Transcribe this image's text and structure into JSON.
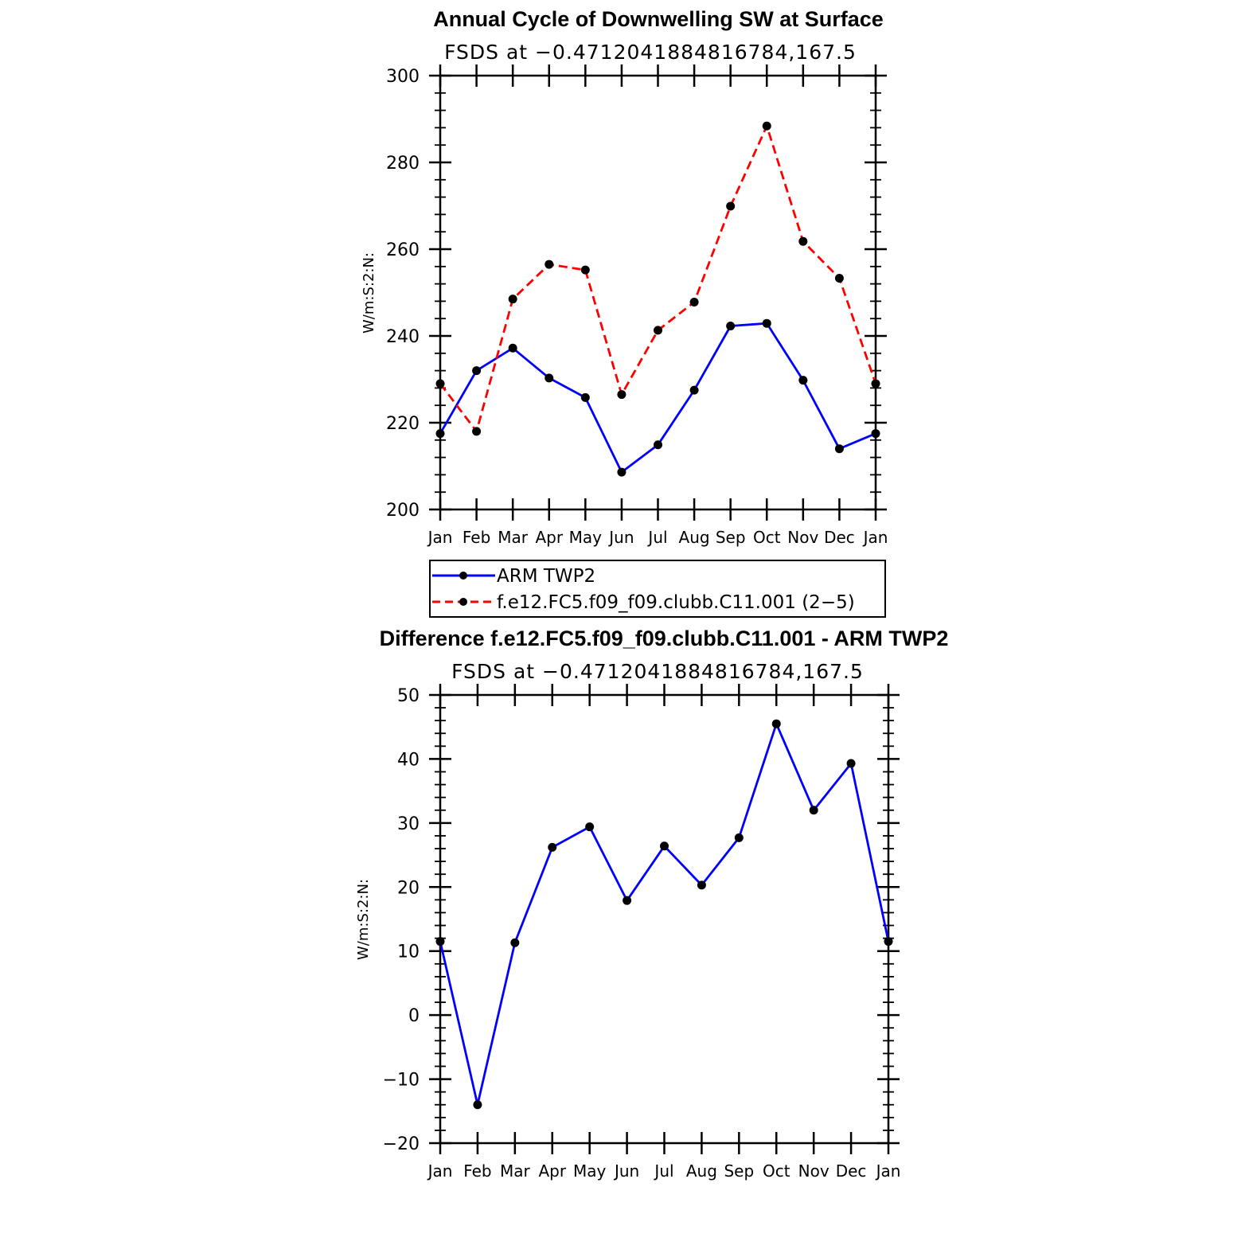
{
  "chart_data": [
    {
      "type": "line",
      "title": "Annual Cycle of Downwelling SW at Surface",
      "subtitle": "FSDS at −0.4712041884816784,167.5",
      "xlabel": "",
      "ylabel": "W/m:S:2:N:",
      "categories": [
        "Jan",
        "Feb",
        "Mar",
        "Apr",
        "May",
        "Jun",
        "Jul",
        "Aug",
        "Sep",
        "Oct",
        "Nov",
        "Dec",
        "Jan"
      ],
      "ylim": [
        200,
        300
      ],
      "yticks": [
        "200",
        "220",
        "240",
        "260",
        "280",
        "300"
      ],
      "series": [
        {
          "name": "ARM TWP2",
          "color": "#0000ff",
          "style": "solid",
          "values": [
            217.5,
            232.0,
            237.2,
            230.3,
            225.8,
            208.6,
            214.9,
            227.5,
            242.3,
            242.9,
            229.8,
            214.0,
            217.5
          ]
        },
        {
          "name": "f.e12.FC5.f09_f09.clubb.C11.001 (2−5)",
          "color": "#ff0000",
          "style": "dashed",
          "values": [
            229.0,
            218.0,
            248.5,
            256.5,
            255.2,
            226.5,
            241.3,
            247.8,
            269.9,
            288.4,
            261.8,
            253.3,
            229.0
          ]
        }
      ],
      "legend": [
        "ARM TWP2",
        "f.e12.FC5.f09_f09.clubb.C11.001 (2−5)"
      ]
    },
    {
      "type": "line",
      "title": "Difference f.e12.FC5.f09_f09.clubb.C11.001 - ARM TWP2",
      "subtitle": "FSDS at −0.4712041884816784,167.5",
      "xlabel": "",
      "ylabel": "W/m:S:2:N:",
      "categories": [
        "Jan",
        "Feb",
        "Mar",
        "Apr",
        "May",
        "Jun",
        "Jul",
        "Aug",
        "Sep",
        "Oct",
        "Nov",
        "Dec",
        "Jan"
      ],
      "ylim": [
        -20,
        50
      ],
      "yticks": [
        "−20",
        "−10",
        "0",
        "10",
        "20",
        "30",
        "40",
        "50"
      ],
      "series": [
        {
          "name": "Difference",
          "color": "#0000ff",
          "style": "solid",
          "values": [
            11.5,
            -14.0,
            11.3,
            26.2,
            29.4,
            17.9,
            26.4,
            20.3,
            27.7,
            45.5,
            32.0,
            39.3,
            11.5
          ]
        }
      ]
    }
  ]
}
